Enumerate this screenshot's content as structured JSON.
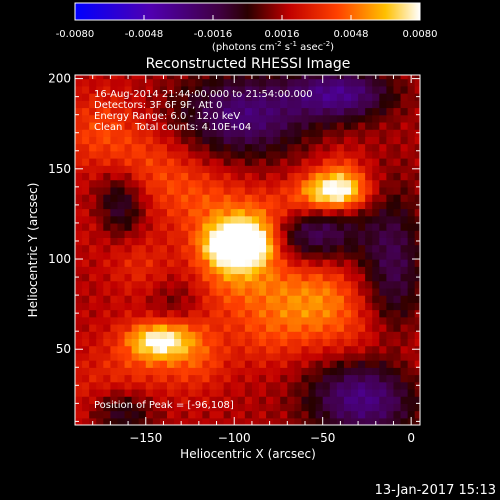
{
  "colorbar": {
    "ticks": [
      "-0.0080",
      "-0.0048",
      "-0.0016",
      "0.0016",
      "0.0048",
      "0.0080"
    ],
    "units": "(photons cm",
    "units_sup1": "-2",
    "units_mid": " s",
    "units_sup2": "-1",
    "units_mid2": " asec",
    "units_sup3": "-2",
    "units_end": ")"
  },
  "chart_data": {
    "type": "heatmap",
    "title": "Reconstructed RHESSI Image",
    "xlabel": "Heliocentric X (arcsec)",
    "ylabel": "Heliocentric Y (arcsec)",
    "xlim": [
      -190,
      5
    ],
    "ylim": [
      8,
      202
    ],
    "x_ticks": [
      -150,
      -100,
      -50,
      0
    ],
    "y_ticks": [
      50,
      100,
      150,
      200
    ],
    "x_tick_labels": [
      "−150",
      "−100",
      "−50",
      "0"
    ],
    "y_tick_labels": [
      "50",
      "100",
      "150",
      "200"
    ],
    "colorbar_range": [
      -0.008,
      0.008
    ],
    "colormap": "rhessi-hot",
    "peak_position": [
      -96,
      108
    ],
    "sources": [
      {
        "x": -96,
        "y": 108,
        "intensity": 1.0
      },
      {
        "x": -42,
        "y": 137,
        "intensity": 0.85
      },
      {
        "x": -143,
        "y": 55,
        "intensity": 0.8
      }
    ]
  },
  "annotations": {
    "time_range": "16-Aug-2014 21:44:00.000 to 21:54:00.000",
    "detectors": "Detectors: 3F 6F 9F, Att 0",
    "energy": "Energy Range: 6.0 - 12.0 keV",
    "clean": "Clean    Total counts: 4.10E+04",
    "peak": "Position of Peak = [-96,108]"
  },
  "footer": {
    "timestamp": "13-Jan-2017 15:13"
  }
}
